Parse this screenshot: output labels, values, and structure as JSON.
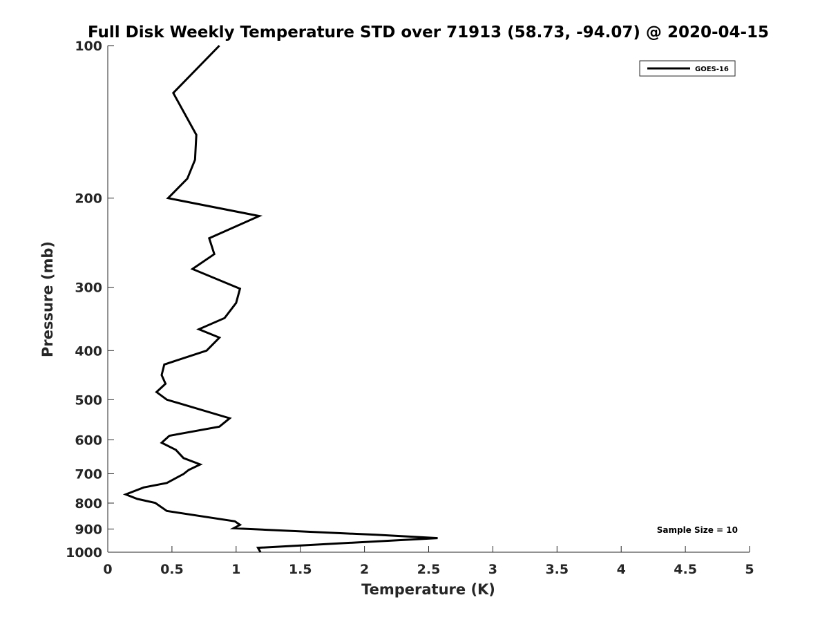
{
  "chart_data": {
    "type": "line",
    "title": "Full Disk Weekly Temperature STD over 71913 (58.73, -94.07) @ 2020-04-15",
    "xlabel": "Temperature (K)",
    "ylabel": "Pressure (mb)",
    "xlim": [
      0,
      5
    ],
    "ylim": [
      100,
      1000
    ],
    "y_scale": "log",
    "y_reversed": true,
    "x_ticks": [
      "0",
      "0.5",
      "1",
      "1.5",
      "2",
      "2.5",
      "3",
      "3.5",
      "4",
      "4.5",
      "5"
    ],
    "y_ticks": [
      "100",
      "200",
      "300",
      "400",
      "500",
      "600",
      "700",
      "800",
      "900",
      "1000"
    ],
    "grid": false,
    "legend_position": "top-right",
    "series": [
      {
        "name": "GOES-16",
        "color": "#000000",
        "points": [
          [
            0.87,
            100
          ],
          [
            0.51,
            124
          ],
          [
            0.69,
            150
          ],
          [
            0.68,
            168
          ],
          [
            0.62,
            183
          ],
          [
            0.47,
            200
          ],
          [
            1.18,
            217
          ],
          [
            0.79,
            240
          ],
          [
            0.83,
            258
          ],
          [
            0.66,
            276
          ],
          [
            1.03,
            302
          ],
          [
            1.0,
            322
          ],
          [
            0.91,
            345
          ],
          [
            0.71,
            363
          ],
          [
            0.87,
            377
          ],
          [
            0.77,
            400
          ],
          [
            0.44,
            426
          ],
          [
            0.42,
            447
          ],
          [
            0.45,
            465
          ],
          [
            0.38,
            483
          ],
          [
            0.46,
            500
          ],
          [
            0.95,
            544
          ],
          [
            0.87,
            565
          ],
          [
            0.48,
            589
          ],
          [
            0.42,
            608
          ],
          [
            0.53,
            628
          ],
          [
            0.59,
            652
          ],
          [
            0.72,
            671
          ],
          [
            0.63,
            688
          ],
          [
            0.59,
            701
          ],
          [
            0.46,
            730
          ],
          [
            0.28,
            745
          ],
          [
            0.14,
            769
          ],
          [
            0.23,
            785
          ],
          [
            0.37,
            799
          ],
          [
            0.46,
            829
          ],
          [
            0.99,
            869
          ],
          [
            1.03,
            883
          ],
          [
            0.98,
            897
          ],
          [
            2.09,
            924
          ],
          [
            2.57,
            938
          ],
          [
            1.17,
            980
          ],
          [
            1.19,
            1000
          ]
        ]
      }
    ],
    "annotation": "Sample Size = 10"
  }
}
